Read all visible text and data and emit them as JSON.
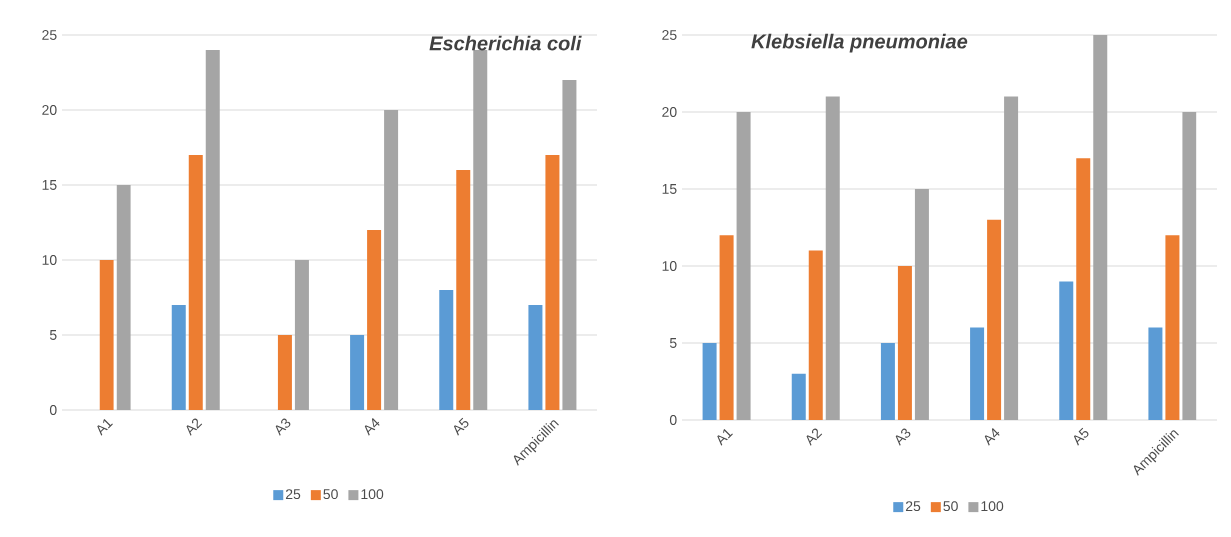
{
  "chart_data": [
    {
      "type": "bar",
      "title": "Escherichia coli",
      "categories": [
        "A1",
        "A2",
        "A3",
        "A4",
        "A5",
        "Ampicillin"
      ],
      "series": [
        {
          "name": "25",
          "color": "#5b9bd5",
          "values": [
            0,
            7,
            0,
            5,
            8,
            7
          ]
        },
        {
          "name": "50",
          "color": "#ed7d31",
          "values": [
            10,
            17,
            5,
            12,
            16,
            17
          ]
        },
        {
          "name": "100",
          "color": "#a5a5a5",
          "values": [
            15,
            24,
            10,
            20,
            24,
            22
          ]
        }
      ],
      "ylim": [
        0,
        25
      ],
      "yticks": [
        0,
        5,
        10,
        15,
        20,
        25
      ],
      "grid": "y",
      "legend": "bottom"
    },
    {
      "type": "bar",
      "title": "Klebsiella pneumoniae",
      "categories": [
        "A1",
        "A2",
        "A3",
        "A4",
        "A5",
        "Ampicillin"
      ],
      "series": [
        {
          "name": "25",
          "color": "#5b9bd5",
          "values": [
            5,
            3,
            5,
            6,
            9,
            6
          ]
        },
        {
          "name": "50",
          "color": "#ed7d31",
          "values": [
            12,
            11,
            10,
            13,
            17,
            12
          ]
        },
        {
          "name": "100",
          "color": "#a5a5a5",
          "values": [
            20,
            21,
            15,
            21,
            25,
            20
          ]
        }
      ],
      "ylim": [
        0,
        25
      ],
      "yticks": [
        0,
        5,
        10,
        15,
        20,
        25
      ],
      "grid": "y",
      "legend": "bottom"
    }
  ]
}
